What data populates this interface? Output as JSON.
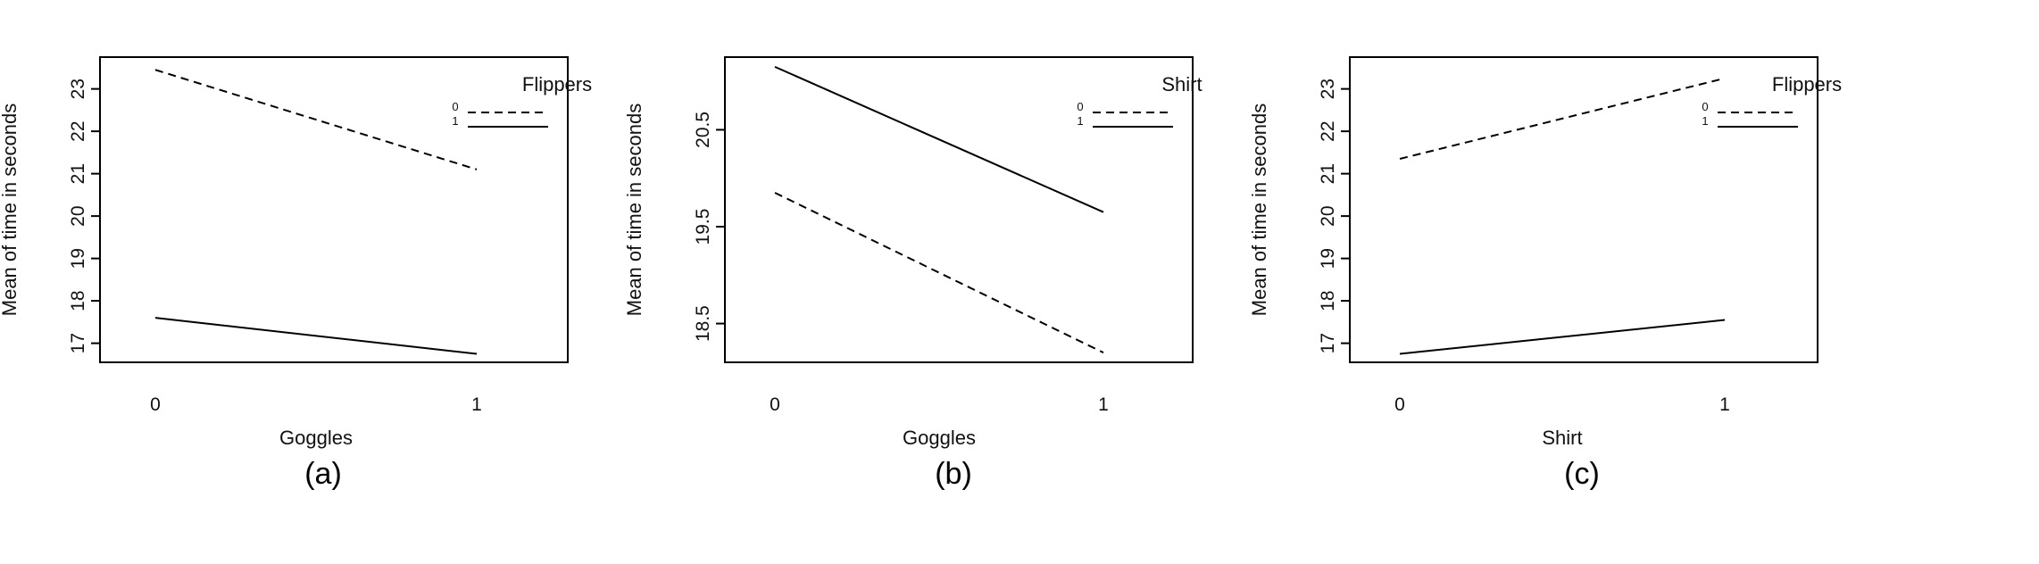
{
  "chart_data": [
    {
      "type": "line",
      "caption": "(a)",
      "xlabel": "Goggles",
      "ylabel": "Mean of time in seconds",
      "categories": [
        "0",
        "1"
      ],
      "yticks": [
        17,
        18,
        19,
        20,
        21,
        22,
        23
      ],
      "ylim": [
        16.55,
        23.75
      ],
      "legend": {
        "title": "Flippers",
        "position": "top-right"
      },
      "series": [
        {
          "name": "0",
          "linestyle": "dashed",
          "values": [
            23.45,
            21.1
          ]
        },
        {
          "name": "1",
          "linestyle": "solid",
          "values": [
            17.6,
            16.75
          ]
        }
      ]
    },
    {
      "type": "line",
      "caption": "(b)",
      "xlabel": "Goggles",
      "ylabel": "Mean of time in seconds",
      "categories": [
        "0",
        "1"
      ],
      "yticks": [
        "18.5",
        "19.5",
        "20.5"
      ],
      "ylim": [
        18.1,
        21.25
      ],
      "legend": {
        "title": "Shirt",
        "position": "top-right"
      },
      "series": [
        {
          "name": "0",
          "linestyle": "dashed",
          "values": [
            19.85,
            18.2
          ]
        },
        {
          "name": "1",
          "linestyle": "solid",
          "values": [
            21.15,
            19.65
          ]
        }
      ]
    },
    {
      "type": "line",
      "caption": "(c)",
      "xlabel": "Shirt",
      "ylabel": "Mean of time in seconds",
      "categories": [
        "0",
        "1"
      ],
      "yticks": [
        17,
        18,
        19,
        20,
        21,
        22,
        23
      ],
      "ylim": [
        16.55,
        23.75
      ],
      "legend": {
        "title": "Flippers",
        "position": "top-right"
      },
      "series": [
        {
          "name": "0",
          "linestyle": "dashed",
          "values": [
            21.35,
            23.25
          ]
        },
        {
          "name": "1",
          "linestyle": "solid",
          "values": [
            16.75,
            17.55
          ]
        }
      ]
    }
  ]
}
